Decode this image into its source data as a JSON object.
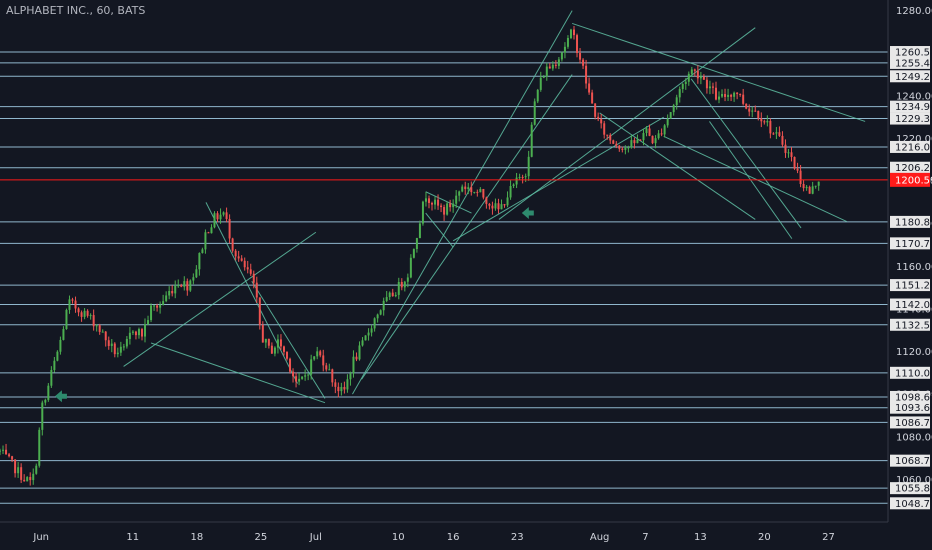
{
  "chart_data": {
    "type": "candlestick",
    "title": "ALPHABET INC., 60, BATS",
    "ylim": [
      1040,
      1285
    ],
    "y_ticks": [
      1280,
      1240,
      1220,
      1200,
      1180,
      1160,
      1140,
      1120,
      1100,
      1080,
      1060
    ],
    "x_ticks": [
      "Jun",
      "11",
      "18",
      "25",
      "Jul",
      "10",
      "16",
      "23",
      "Aug",
      "7",
      "13",
      "20",
      "27"
    ],
    "x_tick_days": [
      1,
      11,
      18,
      25,
      31,
      40,
      46,
      53,
      62,
      67,
      73,
      80,
      87
    ],
    "xlim": [
      -3.5,
      93.5
    ],
    "horizontal_levels": [
      1260.58,
      1255.47,
      1249.2,
      1234.94,
      1229.36,
      1216.03,
      1206.28,
      1180.85,
      1170.78,
      1151.2,
      1142.08,
      1132.57,
      1110.02,
      1098.69,
      1093.65,
      1086.73,
      1068.79,
      1055.89,
      1048.78
    ],
    "current_price": 1200.59,
    "colors": {
      "background": "#131722",
      "up": "#4caf50",
      "down": "#ef5350",
      "level_line": "#9ec9e0",
      "trend_line": "#5fbfa4",
      "price_line": "#ff1a1a",
      "arrow": "#2e8b6e",
      "axis_text": "#d1d4dc",
      "tag_bg": "#e8e8e8"
    },
    "trend_lines": [
      [
        [
          10,
          1113
        ],
        [
          31,
          1176
        ]
      ],
      [
        [
          19,
          1190
        ],
        [
          29,
          1105
        ]
      ],
      [
        [
          13,
          1124
        ],
        [
          32,
          1096
        ]
      ],
      [
        [
          24,
          1153
        ],
        [
          32,
          1098
        ]
      ],
      [
        [
          35,
          1100
        ],
        [
          59,
          1280
        ]
      ],
      [
        [
          36,
          1107
        ],
        [
          59,
          1250
        ]
      ],
      [
        [
          46,
          1172
        ],
        [
          69,
          1230
        ]
      ],
      [
        [
          51,
          1182
        ],
        [
          79,
          1272
        ]
      ],
      [
        [
          59,
          1274
        ],
        [
          91,
          1228
        ]
      ],
      [
        [
          62,
          1232
        ],
        [
          79,
          1182
        ]
      ],
      [
        [
          69,
          1221
        ],
        [
          89,
          1181
        ]
      ],
      [
        [
          72,
          1248
        ],
        [
          84,
          1178
        ]
      ],
      [
        [
          74,
          1228
        ],
        [
          83,
          1173
        ]
      ],
      [
        [
          43,
          1185
        ],
        [
          46,
          1169
        ]
      ],
      [
        [
          43,
          1195
        ],
        [
          48,
          1185
        ]
      ]
    ],
    "arrows": [
      {
        "day": 2.5,
        "price": 1099
      },
      {
        "day": 53.5,
        "price": 1185
      }
    ],
    "price_path": [
      [
        -3.5,
        1073
      ],
      [
        -2,
        1066
      ],
      [
        -1,
        1061
      ],
      [
        0,
        1058
      ],
      [
        0.6,
        1072
      ],
      [
        1,
        1094
      ],
      [
        1.4,
        1096
      ],
      [
        2,
        1108
      ],
      [
        3,
        1123
      ],
      [
        4,
        1143
      ],
      [
        5,
        1140
      ],
      [
        6,
        1137
      ],
      [
        7,
        1133
      ],
      [
        8,
        1126
      ],
      [
        9,
        1120
      ],
      [
        10,
        1120
      ],
      [
        11,
        1131
      ],
      [
        12,
        1128
      ],
      [
        13,
        1140
      ],
      [
        14,
        1142
      ],
      [
        15,
        1148
      ],
      [
        16,
        1153
      ],
      [
        17,
        1151
      ],
      [
        18,
        1160
      ],
      [
        19,
        1176
      ],
      [
        20,
        1183
      ],
      [
        21,
        1185
      ],
      [
        22,
        1168
      ],
      [
        23,
        1160
      ],
      [
        24,
        1155
      ],
      [
        24.6,
        1142
      ],
      [
        25,
        1128
      ],
      [
        26,
        1120
      ],
      [
        27,
        1125
      ],
      [
        28,
        1115
      ],
      [
        29,
        1104
      ],
      [
        30,
        1110
      ],
      [
        31,
        1120
      ],
      [
        32,
        1115
      ],
      [
        33,
        1105
      ],
      [
        34,
        1100
      ],
      [
        35,
        1115
      ],
      [
        36,
        1122
      ],
      [
        37,
        1132
      ],
      [
        38,
        1140
      ],
      [
        39,
        1145
      ],
      [
        40,
        1150
      ],
      [
        41,
        1156
      ],
      [
        42,
        1175
      ],
      [
        43,
        1194
      ],
      [
        44,
        1189
      ],
      [
        45,
        1186
      ],
      [
        46,
        1190
      ],
      [
        47,
        1198
      ],
      [
        48,
        1196
      ],
      [
        49,
        1194
      ],
      [
        50,
        1190
      ],
      [
        51,
        1186
      ],
      [
        52,
        1194
      ],
      [
        53,
        1200
      ],
      [
        54,
        1205
      ],
      [
        55,
        1240
      ],
      [
        56,
        1252
      ],
      [
        57,
        1255
      ],
      [
        58,
        1262
      ],
      [
        59,
        1270
      ],
      [
        60,
        1256
      ],
      [
        61,
        1238
      ],
      [
        62,
        1226
      ],
      [
        63,
        1220
      ],
      [
        64,
        1217
      ],
      [
        65,
        1216
      ],
      [
        66,
        1218
      ],
      [
        67,
        1224
      ],
      [
        68,
        1218
      ],
      [
        69,
        1226
      ],
      [
        70,
        1235
      ],
      [
        71,
        1245
      ],
      [
        72,
        1252
      ],
      [
        73,
        1250
      ],
      [
        74,
        1244
      ],
      [
        75,
        1238
      ],
      [
        76,
        1241
      ],
      [
        77,
        1242
      ],
      [
        78,
        1235
      ],
      [
        79,
        1233
      ],
      [
        80,
        1229
      ],
      [
        81,
        1222
      ],
      [
        82,
        1218
      ],
      [
        83,
        1210
      ],
      [
        84,
        1200
      ],
      [
        85,
        1194
      ],
      [
        86,
        1202
      ]
    ]
  }
}
